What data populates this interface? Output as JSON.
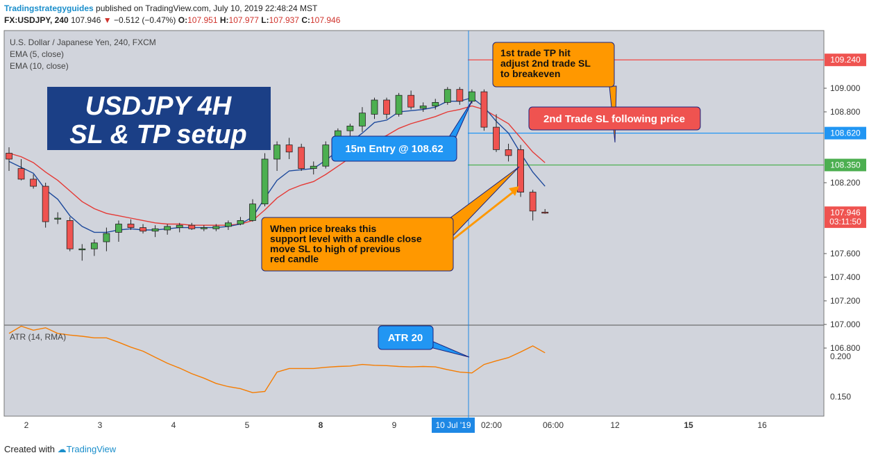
{
  "header": {
    "brand": "Tradingstrategyguides",
    "published": "published on TradingView.com, July 10, 2019 22:48:24 MST",
    "symbol": "FX:USDJPY, 240",
    "last": "107.946",
    "change_arrow": "▼",
    "change": "−0.512 (−0.47%)",
    "o_label": "O:",
    "o": "107.951",
    "h_label": "H:",
    "h": "107.977",
    "l_label": "L:",
    "l": "107.937",
    "c_label": "C:",
    "c": "107.946"
  },
  "legend": {
    "title": "U.S. Dollar / Japanese Yen, 240, FXCM",
    "ema5": "EMA (5, close)",
    "ema10": "EMA (10, close)",
    "atr": "ATR (14, RMA)"
  },
  "footer": {
    "created_with": "Created with",
    "tradingview": "TradingView"
  },
  "colors": {
    "background": "#d1d4dc",
    "up": "#4caf50",
    "down": "#ef5350",
    "ema5": "#1e4a9c",
    "ema10": "#e53935",
    "atr": "#f57c00",
    "title_box": "#1b3f86",
    "callout_orange": "#ff9800",
    "callout_blue": "#2196f3",
    "callout_red": "#ef5350"
  },
  "annotations": {
    "title_line1": "USDJPY 4H",
    "title_line2": "SL & TP setup",
    "tp_note": [
      "1st trade TP hit",
      "adjust 2nd trade SL",
      "to breakeven"
    ],
    "sl_follow": "2nd Trade SL following price",
    "entry": "15m Entry @ 108.62",
    "support_note": [
      "When price breaks this",
      "support level with a candle close",
      "move SL to high of previous",
      "red candle"
    ],
    "atr_note": "ATR 20"
  },
  "chart_data": [
    {
      "type": "candlestick",
      "title": "U.S. Dollar / Japanese Yen, 240, FXCM",
      "ylim": [
        106.8,
        109.3
      ],
      "y_ticks": [
        "109.000",
        "108.800",
        "108.200",
        "107.600",
        "107.400",
        "107.200",
        "107.000",
        "106.800"
      ],
      "x_ticks": [
        "2",
        "3",
        "4",
        "5",
        "8",
        "9",
        "10 Jul '19",
        "02:00",
        "06:00",
        "12",
        "15",
        "16"
      ],
      "price_labels": [
        {
          "text": "109.240",
          "value": 109.24,
          "color": "#ef5350"
        },
        {
          "text": "108.620",
          "value": 108.62,
          "color": "#2196f3"
        },
        {
          "text": "108.350",
          "value": 108.35,
          "color": "#4caf50"
        },
        {
          "text": "107.946",
          "value": 107.946,
          "color": "#ef5350"
        },
        {
          "text": "03:11:50",
          "value": 107.87,
          "color": "#ef5350"
        }
      ],
      "hlines": [
        {
          "value": 109.24,
          "color": "#ef5350"
        },
        {
          "value": 108.62,
          "color": "#2196f3"
        },
        {
          "value": 108.35,
          "color": "#4caf50"
        }
      ],
      "candles": [
        {
          "o": 108.45,
          "h": 108.5,
          "l": 108.3,
          "c": 108.4
        },
        {
          "o": 108.32,
          "h": 108.4,
          "l": 108.22,
          "c": 108.23
        },
        {
          "o": 108.23,
          "h": 108.27,
          "l": 108.15,
          "c": 108.17
        },
        {
          "o": 108.17,
          "h": 108.2,
          "l": 107.82,
          "c": 107.87
        },
        {
          "o": 107.9,
          "h": 107.95,
          "l": 107.85,
          "c": 107.9
        },
        {
          "o": 107.88,
          "h": 107.91,
          "l": 107.62,
          "c": 107.64
        },
        {
          "o": 107.64,
          "h": 107.68,
          "l": 107.54,
          "c": 107.64
        },
        {
          "o": 107.64,
          "h": 107.72,
          "l": 107.58,
          "c": 107.69
        },
        {
          "o": 107.7,
          "h": 107.82,
          "l": 107.62,
          "c": 107.77
        },
        {
          "o": 107.78,
          "h": 107.88,
          "l": 107.7,
          "c": 107.85
        },
        {
          "o": 107.85,
          "h": 107.89,
          "l": 107.8,
          "c": 107.82
        },
        {
          "o": 107.82,
          "h": 107.85,
          "l": 107.77,
          "c": 107.79
        },
        {
          "o": 107.79,
          "h": 107.84,
          "l": 107.74,
          "c": 107.81
        },
        {
          "o": 107.8,
          "h": 107.85,
          "l": 107.76,
          "c": 107.83
        },
        {
          "o": 107.82,
          "h": 107.86,
          "l": 107.78,
          "c": 107.84
        },
        {
          "o": 107.84,
          "h": 107.86,
          "l": 107.8,
          "c": 107.81
        },
        {
          "o": 107.81,
          "h": 107.84,
          "l": 107.79,
          "c": 107.82
        },
        {
          "o": 107.81,
          "h": 107.85,
          "l": 107.79,
          "c": 107.83
        },
        {
          "o": 107.83,
          "h": 107.88,
          "l": 107.8,
          "c": 107.86
        },
        {
          "o": 107.85,
          "h": 107.91,
          "l": 107.84,
          "c": 107.88
        },
        {
          "o": 107.88,
          "h": 108.06,
          "l": 107.87,
          "c": 108.02
        },
        {
          "o": 108.02,
          "h": 108.45,
          "l": 108.0,
          "c": 108.4
        },
        {
          "o": 108.4,
          "h": 108.55,
          "l": 108.3,
          "c": 108.52
        },
        {
          "o": 108.52,
          "h": 108.58,
          "l": 108.4,
          "c": 108.46
        },
        {
          "o": 108.5,
          "h": 108.53,
          "l": 108.3,
          "c": 108.32
        },
        {
          "o": 108.32,
          "h": 108.38,
          "l": 108.27,
          "c": 108.34
        },
        {
          "o": 108.34,
          "h": 108.55,
          "l": 108.32,
          "c": 108.52
        },
        {
          "o": 108.52,
          "h": 108.66,
          "l": 108.49,
          "c": 108.64
        },
        {
          "o": 108.64,
          "h": 108.7,
          "l": 108.58,
          "c": 108.68
        },
        {
          "o": 108.68,
          "h": 108.84,
          "l": 108.63,
          "c": 108.79
        },
        {
          "o": 108.78,
          "h": 108.92,
          "l": 108.74,
          "c": 108.9
        },
        {
          "o": 108.9,
          "h": 108.92,
          "l": 108.74,
          "c": 108.78
        },
        {
          "o": 108.78,
          "h": 108.96,
          "l": 108.76,
          "c": 108.94
        },
        {
          "o": 108.94,
          "h": 108.98,
          "l": 108.82,
          "c": 108.84
        },
        {
          "o": 108.83,
          "h": 108.88,
          "l": 108.8,
          "c": 108.85
        },
        {
          "o": 108.85,
          "h": 108.91,
          "l": 108.82,
          "c": 108.88
        },
        {
          "o": 108.88,
          "h": 109.01,
          "l": 108.86,
          "c": 108.99
        },
        {
          "o": 108.99,
          "h": 109.01,
          "l": 108.86,
          "c": 108.89
        },
        {
          "o": 108.89,
          "h": 108.99,
          "l": 108.87,
          "c": 108.97
        },
        {
          "o": 108.97,
          "h": 108.99,
          "l": 108.64,
          "c": 108.67
        },
        {
          "o": 108.67,
          "h": 108.78,
          "l": 108.46,
          "c": 108.48
        },
        {
          "o": 108.48,
          "h": 108.53,
          "l": 108.38,
          "c": 108.43
        },
        {
          "o": 108.48,
          "h": 108.52,
          "l": 108.08,
          "c": 108.12
        },
        {
          "o": 108.12,
          "h": 108.14,
          "l": 107.88,
          "c": 107.96
        },
        {
          "o": 107.951,
          "h": 107.977,
          "l": 107.937,
          "c": 107.946
        }
      ],
      "ema5": [
        108.38,
        108.33,
        108.28,
        108.14,
        108.06,
        107.92,
        107.83,
        107.78,
        107.78,
        107.8,
        107.81,
        107.8,
        107.8,
        107.81,
        107.82,
        107.82,
        107.82,
        107.82,
        107.83,
        107.85,
        107.91,
        108.07,
        108.22,
        108.3,
        108.31,
        108.32,
        108.39,
        108.47,
        108.54,
        108.62,
        108.71,
        108.73,
        108.8,
        108.81,
        108.82,
        108.84,
        108.89,
        108.89,
        108.92,
        108.84,
        108.72,
        108.62,
        108.45,
        108.29,
        108.17
      ],
      "ema10": [
        108.45,
        108.42,
        108.37,
        108.29,
        108.22,
        108.13,
        108.04,
        107.98,
        107.94,
        107.92,
        107.9,
        107.88,
        107.86,
        107.85,
        107.85,
        107.84,
        107.84,
        107.84,
        107.84,
        107.85,
        107.88,
        107.97,
        108.07,
        108.14,
        108.18,
        108.21,
        108.27,
        108.34,
        108.41,
        108.48,
        108.56,
        108.6,
        108.66,
        108.7,
        108.73,
        108.76,
        108.8,
        108.82,
        108.85,
        108.82,
        108.76,
        108.7,
        108.58,
        108.46,
        108.37
      ]
    },
    {
      "type": "line",
      "title": "ATR (14, RMA)",
      "y_ticks": [
        "0.200",
        "0.150"
      ],
      "ylim": [
        0.13,
        0.24
      ],
      "series": [
        {
          "name": "ATR (14, RMA)",
          "values": [
            0.2285,
            0.2375,
            0.2325,
            0.2355,
            0.2285,
            0.2265,
            0.225,
            0.223,
            0.223,
            0.2175,
            0.2115,
            0.2065,
            0.199,
            0.1915,
            0.1855,
            0.1785,
            0.173,
            0.1665,
            0.1625,
            0.16,
            0.155,
            0.1565,
            0.1805,
            0.185,
            0.185,
            0.185,
            0.1865,
            0.1875,
            0.188,
            0.19,
            0.189,
            0.1885,
            0.1875,
            0.187,
            0.1875,
            0.187,
            0.1835,
            0.1805,
            0.1795,
            0.19,
            0.1945,
            0.1985,
            0.2055,
            0.213,
            0.2045
          ]
        }
      ]
    }
  ]
}
